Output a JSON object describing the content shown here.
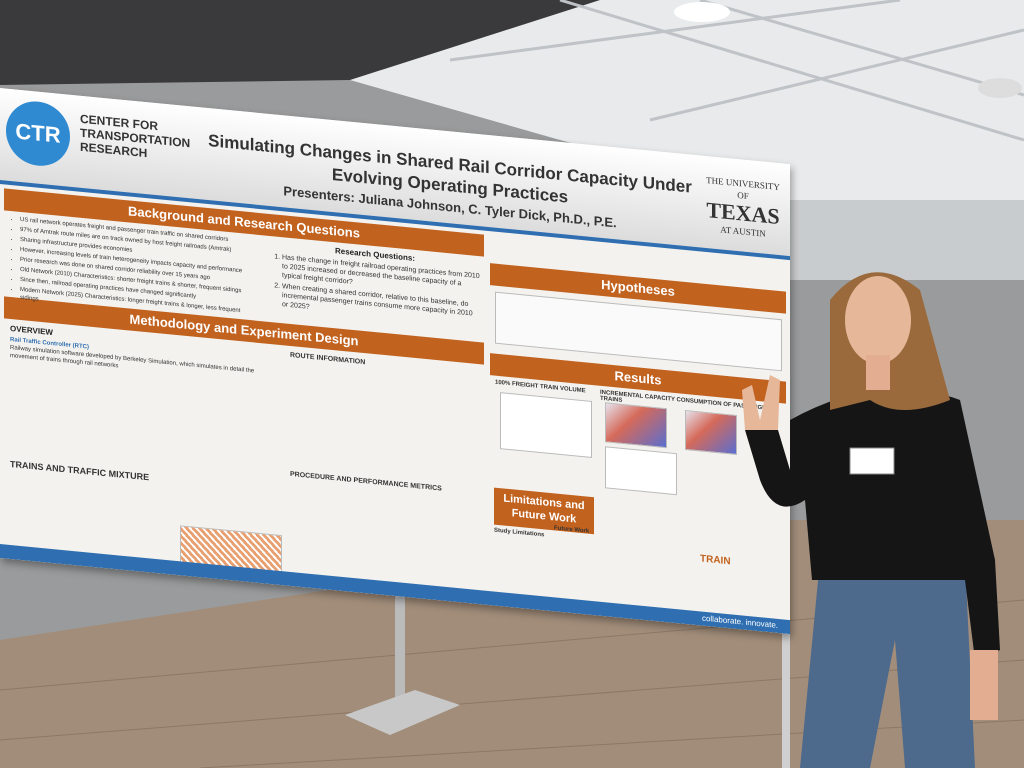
{
  "header": {
    "logo": "CTR",
    "organization": "CENTER FOR TRANSPORTATION RESEARCH",
    "title": "Simulating Changes in Shared Rail Corridor Capacity Under Evolving Operating Practices",
    "presenters": "Presenters: Juliana Johnson, C. Tyler Dick, Ph.D., P.E.",
    "university_top": "THE UNIVERSITY OF",
    "university": "TEXAS",
    "university_bottom": "AT AUSTIN"
  },
  "sections": {
    "background": "Background and Research Questions",
    "hypotheses": "Hypotheses",
    "methodology": "Methodology and Experiment Design",
    "results": "Results",
    "limitations": "Limitations and Future Work"
  },
  "background_bullets": [
    "US rail network operates freight and passenger train traffic on shared corridors",
    "97% of Amtrak route miles are on track owned by host freight railroads (Amtrak)",
    "Sharing infrastructure provides economies",
    "However, increasing levels of train heterogeneity impacts capacity and performance",
    "Prior research was done on shared corridor reliability over 15 years ago",
    "Old Network (2010) Characteristics: shorter freight trains & shorter, frequent sidings",
    "Since then, railroad operating practices have changed significantly",
    "Modern Network (2025) Characteristics: longer freight trains & longer, less frequent sidings"
  ],
  "research_questions": {
    "heading": "Research Questions:",
    "items": [
      "Has the change in freight railroad operating practices from 2010 to 2025 increased or decreased the baseline capacity of a typical freight corridor?",
      "When creating a shared corridor, relative to this baseline, do incremental passenger trains consume more capacity in 2010 or 2025?"
    ]
  },
  "methodology": {
    "overview": "OVERVIEW",
    "rtc": "Rail Traffic Controller (RTC)",
    "rtc_text": "Railway simulation software developed by Berkeley Simulation, which simulates in detail the movement of trains through rail networks",
    "route": "ROUTE INFORMATION",
    "trains": "TRAINS AND TRAFFIC MIXTURE",
    "procedure": "PROCEDURE AND PERFORMANCE METRICS"
  },
  "results": {
    "freight": "100% FREIGHT TRAIN VOLUME",
    "incremental": "INCREMENTAL CAPACITY CONSUMPTION OF PASSENGER TRAINS"
  },
  "limitations": {
    "study": "Study Limitations",
    "future": "Future Work"
  },
  "footer": "collaborate. innovate.",
  "train_logo": "TRAIN"
}
